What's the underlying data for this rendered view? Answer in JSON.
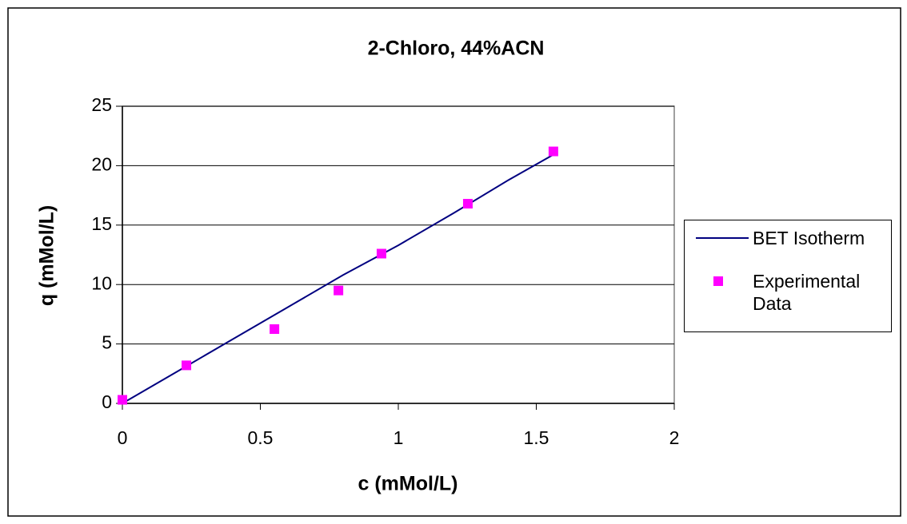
{
  "chart_data": {
    "type": "scatter",
    "title": "2-Chloro, 44%ACN",
    "x_label": "c (mMol/L)",
    "y_label": "q (mMol/L)",
    "xlim": [
      0,
      2
    ],
    "xticks": [
      0,
      0.5,
      1,
      1.5,
      2
    ],
    "ylim": [
      0,
      25
    ],
    "yticks": [
      0,
      5,
      10,
      15,
      20,
      25
    ],
    "grid": true,
    "legend": "right",
    "series": [
      {
        "name": "BET Isotherm",
        "color": "#000080",
        "mode": "line",
        "x": [
          0,
          0.2,
          0.4,
          0.6,
          0.8,
          0.88,
          1.0,
          1.2,
          1.4,
          1.56
        ],
        "values": [
          0,
          2.7,
          5.4,
          8.1,
          10.8,
          11.8,
          13.3,
          16.0,
          18.8,
          20.9
        ]
      },
      {
        "name": "Experimental Data",
        "color": "#ff00ff",
        "mode": "markers",
        "x": [
          0,
          0.232,
          0.551,
          0.783,
          0.939,
          1.252,
          1.562
        ],
        "values": [
          0.3,
          3.2,
          6.25,
          9.5,
          12.6,
          16.8,
          21.2
        ]
      }
    ]
  }
}
